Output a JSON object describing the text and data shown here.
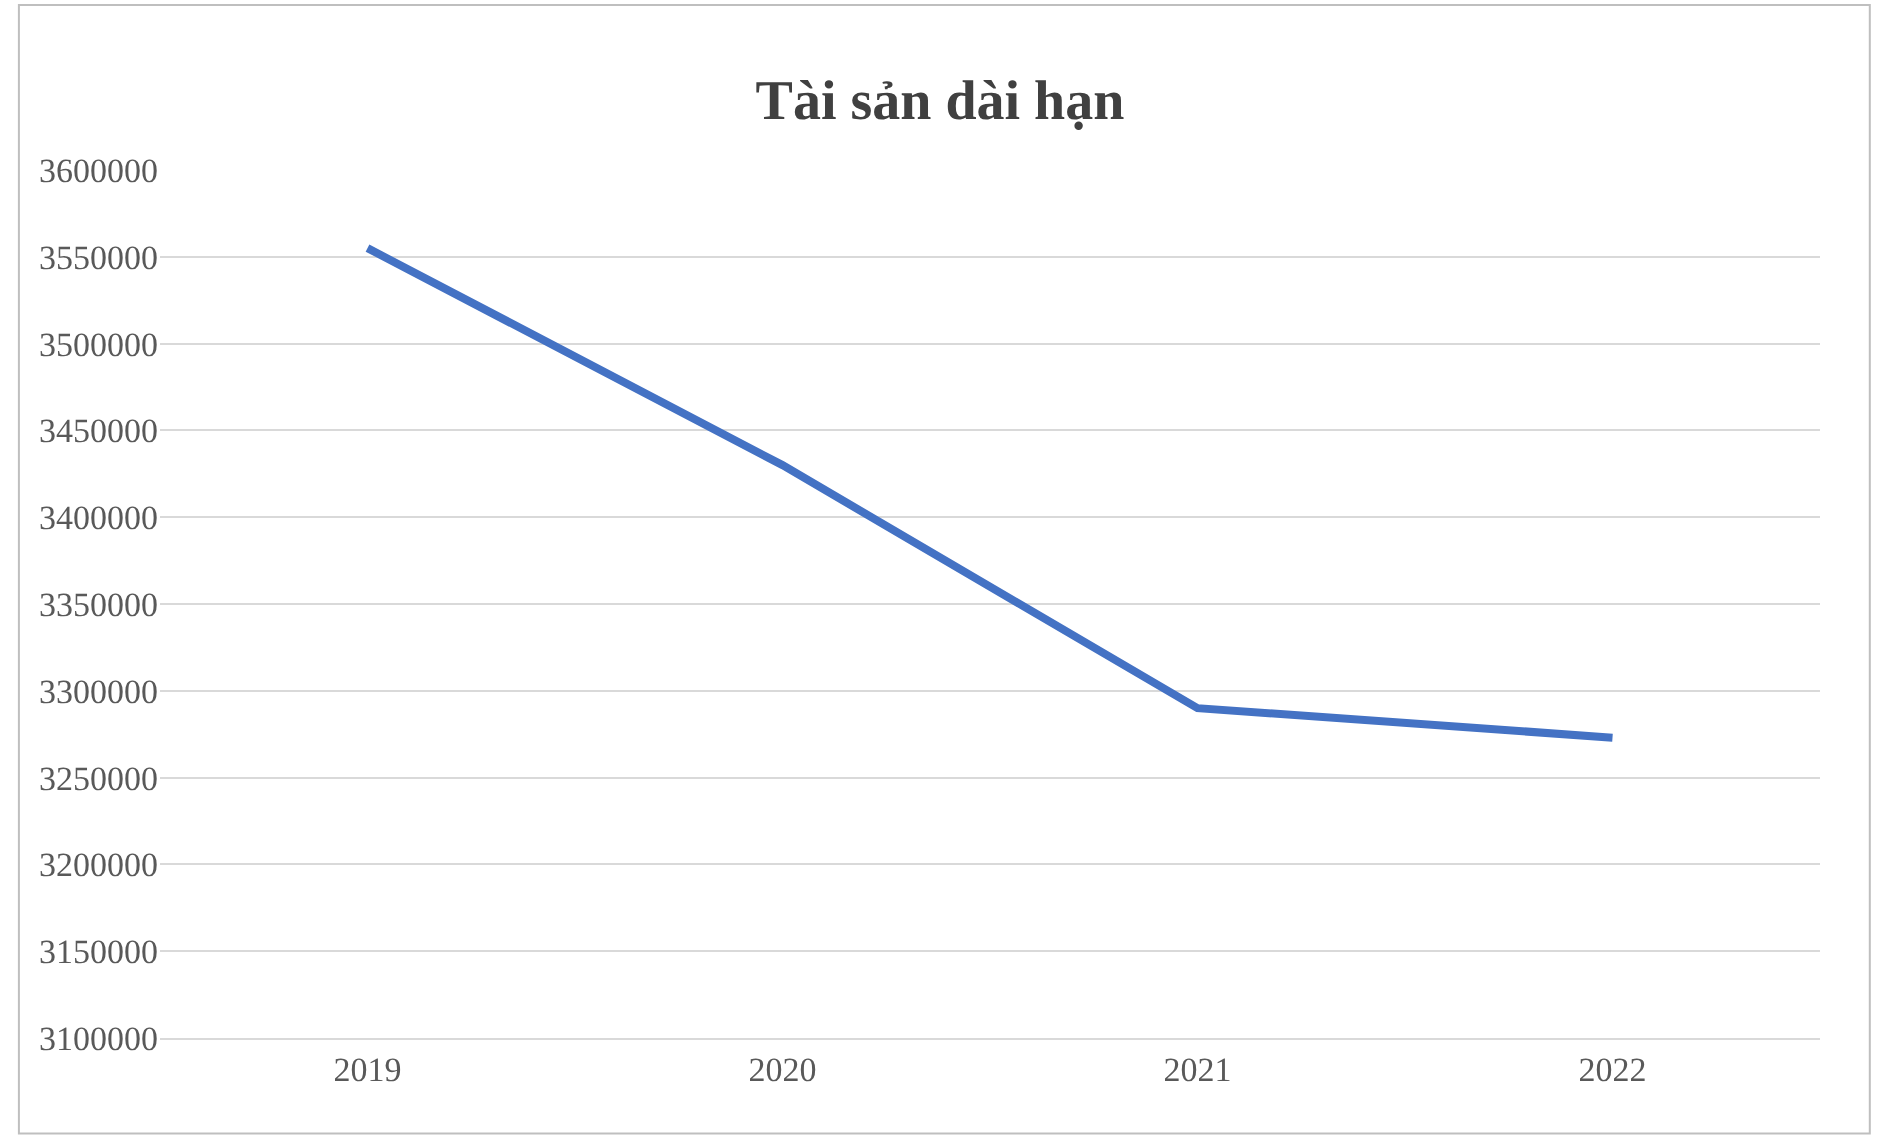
{
  "chart_data": {
    "type": "line",
    "title": "Tài sản dài hạn",
    "categories": [
      "2019",
      "2020",
      "2021",
      "2022"
    ],
    "series": [
      {
        "color": "#4472c4",
        "values": [
          3555000,
          3430000,
          3290000,
          3273000
        ]
      }
    ],
    "ylim": [
      3100000,
      3600000
    ],
    "yticks": [
      3100000,
      3150000,
      3200000,
      3250000,
      3300000,
      3350000,
      3400000,
      3450000,
      3500000,
      3550000,
      3600000
    ],
    "grid": "y",
    "marker": "none",
    "line_style": "solid"
  }
}
